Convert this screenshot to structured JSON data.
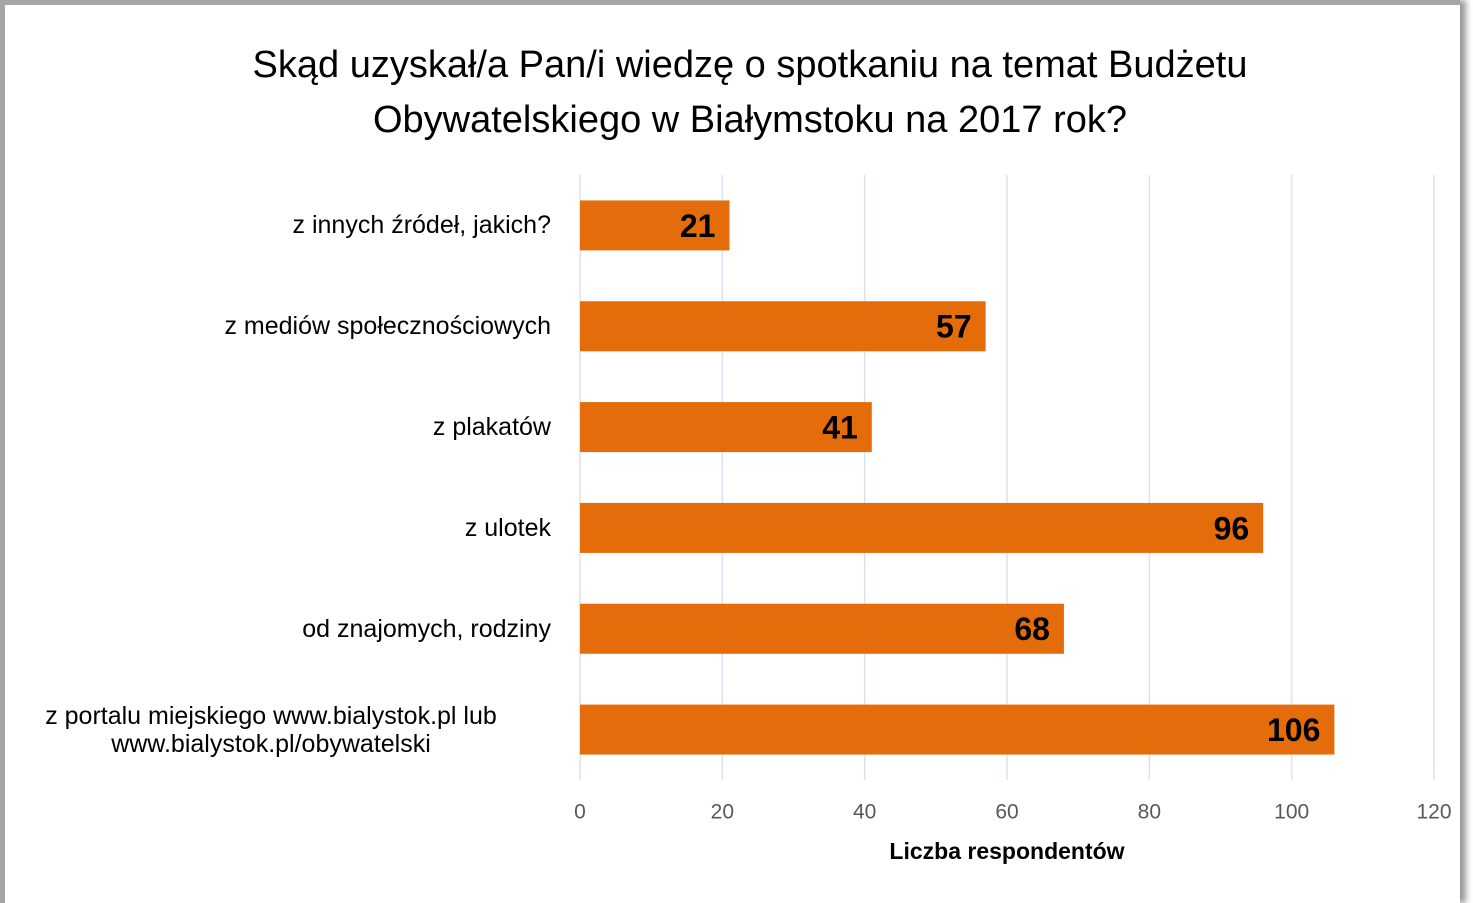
{
  "chart_data": {
    "type": "bar",
    "orientation": "horizontal",
    "title": "Skąd uzyskał/a Pan/i wiedzę o spotkaniu na temat Budżetu Obywatelskiego w Białymstoku na 2017 rok?",
    "categories": [
      "z innych źródeł, jakich?",
      "z mediów społecznościowych",
      "z plakatów",
      "z ulotek",
      "od znajomych, rodziny",
      "z portalu miejskiego www.bialystok.pl lub www.bialystok.pl/obywatelski"
    ],
    "values": [
      21,
      57,
      41,
      96,
      68,
      106
    ],
    "color": "#e46c0a",
    "xlabel": "Liczba respondentów",
    "xlim": [
      0,
      120
    ],
    "xticks": [
      0,
      20,
      40,
      60,
      80,
      100,
      120
    ],
    "grid": true
  }
}
